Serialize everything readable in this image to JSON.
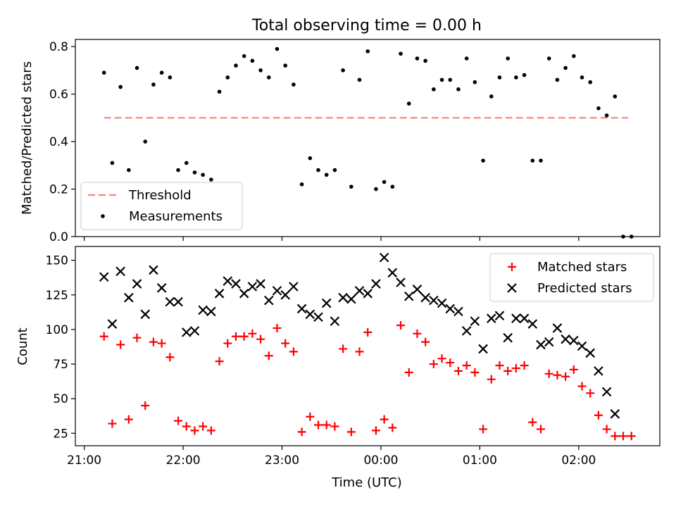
{
  "figure": {
    "title": "Total observing time = 0.00 h"
  },
  "colors": {
    "threshold": "#ff7f7f",
    "measurements": "#000000",
    "matched": "#ff0000",
    "predicted": "#000000"
  },
  "chart_data": [
    {
      "type": "scatter",
      "ylabel": "Matched/Predicted stars",
      "xlabel": "",
      "ylim": [
        0.0,
        0.83
      ],
      "yticks": [
        "0.0",
        "0.2",
        "0.4",
        "0.6",
        "0.8"
      ],
      "xlim_hours": [
        -0.09,
        5.82
      ],
      "legend_position": "lower-left",
      "threshold": {
        "name": "Threshold",
        "value": 0.5,
        "x_start": "21:12",
        "x_end": "02:30",
        "style": "dashed"
      },
      "series": [
        {
          "name": "Measurements",
          "marker": "dot",
          "x": [
            "21:12",
            "21:17",
            "21:22",
            "21:27",
            "21:32",
            "21:37",
            "21:42",
            "21:47",
            "21:52",
            "21:57",
            "22:02",
            "22:07",
            "22:12",
            "22:17",
            "22:22",
            "22:27",
            "22:32",
            "22:37",
            "22:42",
            "22:47",
            "22:52",
            "22:57",
            "23:02",
            "23:07",
            "23:12",
            "23:17",
            "23:22",
            "23:27",
            "23:32",
            "23:37",
            "23:42",
            "23:47",
            "23:52",
            "23:57",
            "00:02",
            "00:07",
            "00:12",
            "00:17",
            "00:22",
            "00:27",
            "00:32",
            "00:37",
            "00:42",
            "00:47",
            "00:52",
            "00:57",
            "01:02",
            "01:07",
            "01:12",
            "01:17",
            "01:22",
            "01:27",
            "01:32",
            "01:37",
            "01:42",
            "01:47",
            "01:52",
            "01:57",
            "02:02",
            "02:07",
            "02:12",
            "02:17",
            "02:22",
            "02:27"
          ],
          "y": [
            0.69,
            0.31,
            0.63,
            0.28,
            0.71,
            0.4,
            0.64,
            0.69,
            0.67,
            0.28,
            0.31,
            0.27,
            0.26,
            0.24,
            0.61,
            0.67,
            0.72,
            0.76,
            0.74,
            0.7,
            0.67,
            0.79,
            0.72,
            0.64,
            0.22,
            0.33,
            0.28,
            0.26,
            0.28,
            0.7,
            0.21,
            0.66,
            0.78,
            0.2,
            0.23,
            0.21,
            0.77,
            0.56,
            0.75,
            0.74,
            0.62,
            0.66,
            0.66,
            0.62,
            0.75,
            0.65,
            0.32,
            0.59,
            0.67,
            0.75,
            0.67,
            0.68,
            0.32,
            0.32,
            0.75,
            0.66,
            0.71,
            0.76,
            0.67,
            0.65,
            0.54,
            0.51,
            0.59,
            0.0
          ]
        },
        {
          "name": "",
          "marker": "dot",
          "x": [
            "02:32"
          ],
          "y": [
            0.0
          ]
        }
      ]
    },
    {
      "type": "scatter",
      "ylabel": "Count",
      "xlabel": "Time (UTC)",
      "ylim": [
        16,
        160
      ],
      "yticks": [
        "25",
        "50",
        "75",
        "100",
        "125",
        "150"
      ],
      "xlim_hours": [
        -0.09,
        5.82
      ],
      "xticks": [
        "21:00",
        "22:00",
        "23:00",
        "00:00",
        "01:00",
        "02:00"
      ],
      "legend_position": "top-right",
      "series": [
        {
          "name": "Matched stars",
          "marker": "plus",
          "x": [
            "21:12",
            "21:17",
            "21:22",
            "21:27",
            "21:32",
            "21:37",
            "21:42",
            "21:47",
            "21:52",
            "21:57",
            "22:02",
            "22:07",
            "22:12",
            "22:17",
            "22:22",
            "22:27",
            "22:32",
            "22:37",
            "22:42",
            "22:47",
            "22:52",
            "22:57",
            "23:02",
            "23:07",
            "23:12",
            "23:17",
            "23:22",
            "23:27",
            "23:32",
            "23:37",
            "23:42",
            "23:47",
            "23:52",
            "23:57",
            "00:02",
            "00:07",
            "00:12",
            "00:17",
            "00:22",
            "00:27",
            "00:32",
            "00:37",
            "00:42",
            "00:47",
            "00:52",
            "00:57",
            "01:02",
            "01:07",
            "01:12",
            "01:17",
            "01:22",
            "01:27",
            "01:32",
            "01:37",
            "01:42",
            "01:47",
            "01:52",
            "01:57",
            "02:02",
            "02:07",
            "02:12",
            "02:17",
            "02:22",
            "02:27",
            "02:32"
          ],
          "y": [
            95,
            32,
            89,
            35,
            94,
            45,
            91,
            90,
            80,
            34,
            30,
            27,
            30,
            27,
            77,
            90,
            95,
            95,
            97,
            93,
            81,
            101,
            90,
            84,
            26,
            37,
            31,
            31,
            30,
            86,
            26,
            84,
            98,
            27,
            35,
            29,
            103,
            69,
            97,
            91,
            75,
            79,
            76,
            70,
            74,
            69,
            28,
            64,
            74,
            70,
            72,
            74,
            33,
            28,
            68,
            67,
            66,
            71,
            59,
            54,
            38,
            28,
            23,
            23,
            23
          ]
        },
        {
          "name": "Predicted stars",
          "marker": "x",
          "x": [
            "21:12",
            "21:17",
            "21:22",
            "21:27",
            "21:32",
            "21:37",
            "21:42",
            "21:47",
            "21:52",
            "21:57",
            "22:02",
            "22:07",
            "22:12",
            "22:17",
            "22:22",
            "22:27",
            "22:32",
            "22:37",
            "22:42",
            "22:47",
            "22:52",
            "22:57",
            "23:02",
            "23:07",
            "23:12",
            "23:17",
            "23:22",
            "23:27",
            "23:32",
            "23:37",
            "23:42",
            "23:47",
            "23:52",
            "23:57",
            "00:02",
            "00:07",
            "00:12",
            "00:17",
            "00:22",
            "00:27",
            "00:32",
            "00:37",
            "00:42",
            "00:47",
            "00:52",
            "00:57",
            "01:02",
            "01:07",
            "01:12",
            "01:17",
            "01:22",
            "01:27",
            "01:32",
            "01:37",
            "01:42",
            "01:47",
            "01:52",
            "01:57",
            "02:02",
            "02:07",
            "02:12",
            "02:17",
            "02:22"
          ],
          "y": [
            138,
            104,
            142,
            123,
            133,
            111,
            143,
            130,
            120,
            120,
            98,
            99,
            114,
            113,
            126,
            135,
            133,
            126,
            131,
            133,
            121,
            128,
            125,
            131,
            115,
            111,
            109,
            119,
            106,
            123,
            122,
            128,
            126,
            133,
            152,
            141,
            134,
            124,
            129,
            123,
            121,
            119,
            115,
            113,
            99,
            106,
            86,
            108,
            110,
            94,
            108,
            108,
            104,
            89,
            91,
            101,
            93,
            92,
            88,
            83,
            70,
            55,
            39
          ]
        }
      ]
    }
  ]
}
